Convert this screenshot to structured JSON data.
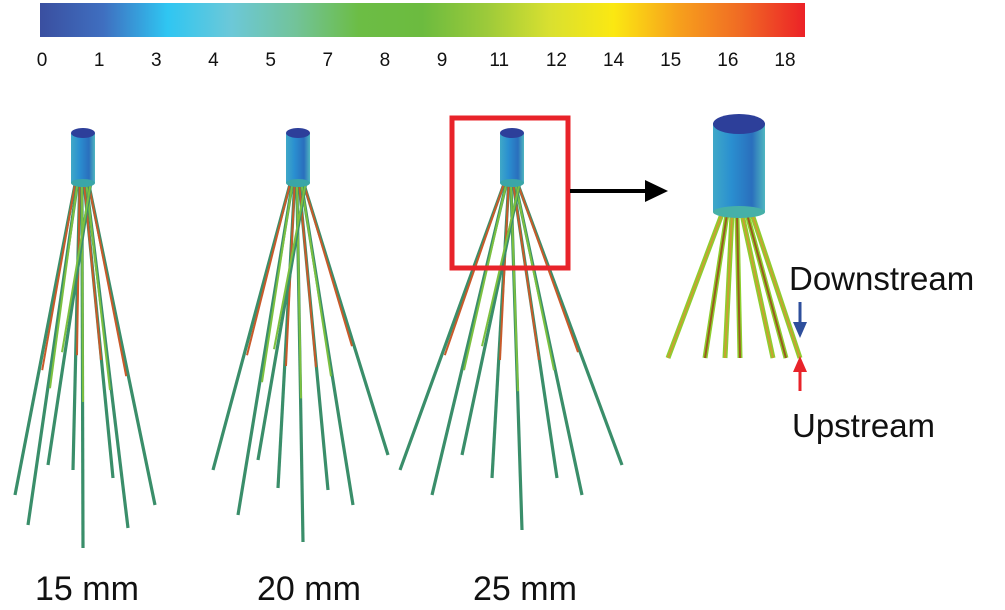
{
  "colorbar": {
    "ticks": [
      "0",
      "1",
      "3",
      "4",
      "5",
      "7",
      "8",
      "9",
      "11",
      "12",
      "14",
      "15",
      "16",
      "18"
    ],
    "colors": [
      "#3a4fa0",
      "#3f6fc0",
      "#2fc6f2",
      "#6cc8d8",
      "#72c39a",
      "#6cbd45",
      "#6cbb3f",
      "#9cca3a",
      "#d9e030",
      "#fbe812",
      "#f7a11c",
      "#f06a24",
      "#ec2227"
    ]
  },
  "panels": [
    {
      "label": "15 mm"
    },
    {
      "label": "20 mm"
    },
    {
      "label": "25 mm"
    }
  ],
  "zoom": {
    "highlight_color": "#e8232a",
    "downstream_label": "Downstream",
    "upstream_label": "Upstream",
    "downstream_arrow_color": "#2e4f9c",
    "upstream_arrow_color": "#e8232a"
  }
}
